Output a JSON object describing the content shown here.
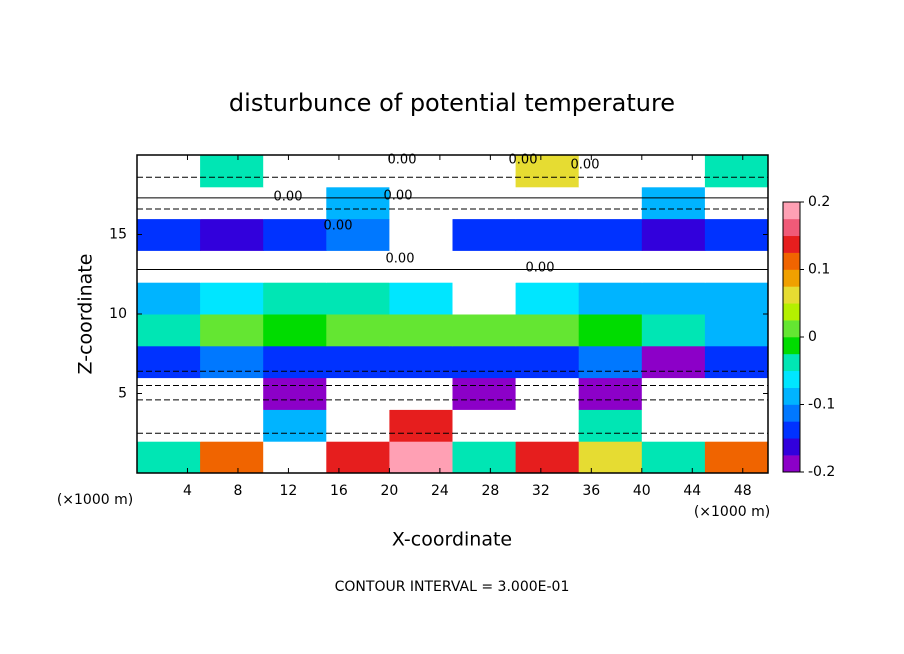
{
  "chart_data": {
    "type": "contour",
    "title": "disturbunce of potential temperature",
    "xlabel": "X-coordinate",
    "ylabel": "Z-coordinate",
    "axis_unit": "(×1000 m)",
    "footer": "CONTOUR INTERVAL = 3.000E-01",
    "contour_label": "0.00",
    "xlim": [
      0,
      50
    ],
    "xticks": [
      4,
      8,
      12,
      16,
      20,
      24,
      28,
      32,
      36,
      40,
      44,
      48
    ],
    "ylim": [
      0,
      20
    ],
    "yticks": [
      5,
      10,
      15
    ],
    "xbins": [
      0,
      5,
      10,
      15,
      20,
      25,
      30,
      35,
      40,
      45,
      50
    ],
    "ybins": [
      0,
      2,
      4,
      6,
      8,
      10,
      12,
      14,
      16,
      18,
      20
    ],
    "z": [
      [
        -0.05,
        0.1,
        0.25,
        0.15,
        0.2,
        -0.05,
        0.15,
        0.05,
        -0.05,
        0.1
      ],
      [
        0.25,
        0.25,
        -0.1,
        0.25,
        0.15,
        0.25,
        0.25,
        -0.05,
        0.25,
        0.25
      ],
      [
        0.25,
        0.25,
        -0.2,
        0.25,
        0.25,
        -0.18,
        0.25,
        -0.2,
        0.25,
        0.25
      ],
      [
        -0.15,
        -0.12,
        -0.15,
        -0.15,
        -0.15,
        -0.15,
        -0.15,
        -0.12,
        -0.18,
        -0.15
      ],
      [
        -0.05,
        0.0,
        -0.02,
        0.0,
        0.02,
        0.0,
        0.0,
        -0.02,
        -0.05,
        -0.08
      ],
      [
        -0.08,
        -0.06,
        -0.05,
        -0.05,
        -0.06,
        0.25,
        -0.06,
        -0.08,
        -0.1,
        -0.1
      ],
      [
        0.25,
        0.25,
        0.25,
        0.25,
        0.25,
        0.25,
        0.25,
        0.25,
        0.25,
        0.25
      ],
      [
        -0.15,
        -0.16,
        -0.15,
        -0.12,
        0.25,
        -0.14,
        -0.15,
        -0.15,
        -0.16,
        -0.15
      ],
      [
        0.25,
        0.25,
        0.25,
        -0.1,
        0.25,
        0.25,
        0.25,
        0.25,
        -0.1,
        0.25
      ],
      [
        0.25,
        -0.05,
        0.25,
        0.25,
        0.25,
        0.25,
        0.05,
        0.25,
        0.25,
        -0.05
      ]
    ],
    "out_of_range_color": "#ffffff",
    "colorbar": {
      "lim": [
        -0.2,
        0.2
      ],
      "ticks": [
        -0.2,
        -0.1,
        0,
        0.1,
        0.2
      ],
      "colors": [
        "#8c00c8",
        "#3200dc",
        "#0032ff",
        "#0078ff",
        "#00b4ff",
        "#00e6ff",
        "#00e6b4",
        "#00dc00",
        "#64e632",
        "#b4f000",
        "#e6dc32",
        "#f0a000",
        "#f06400",
        "#e61e1e",
        "#f05a78",
        "#ffa0b4"
      ]
    }
  }
}
